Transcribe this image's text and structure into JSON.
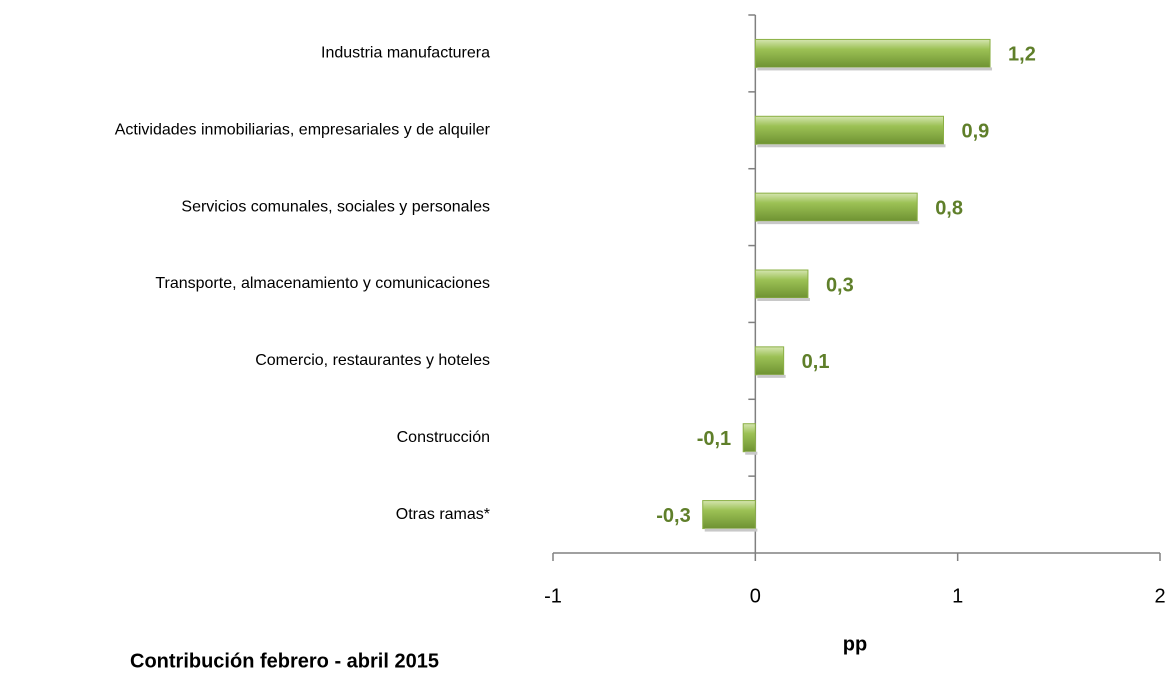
{
  "chart_data": {
    "type": "barh",
    "categories": [
      "Industria manufacturera",
      "Actividades inmobiliarias, empresariales y de alquiler",
      "Servicios comunales, sociales y personales",
      "Transporte, almacenamiento y comunicaciones",
      "Comercio, restaurantes y hoteles",
      "Construcción",
      "Otras ramas*"
    ],
    "values": [
      1.16,
      0.93,
      0.8,
      0.26,
      0.14,
      -0.06,
      -0.26
    ],
    "value_labels": [
      "1,2",
      "0,9",
      "0,8",
      "0,3",
      "0,1",
      "-0,1",
      "-0,3"
    ],
    "color": "#8bb045",
    "label_color": "#5f7f2a",
    "xlim": [
      -1,
      2
    ],
    "xticks": [
      -1,
      0,
      1,
      2
    ],
    "xlabel": "pp",
    "caption": "Contribución febrero - abril 2015"
  }
}
